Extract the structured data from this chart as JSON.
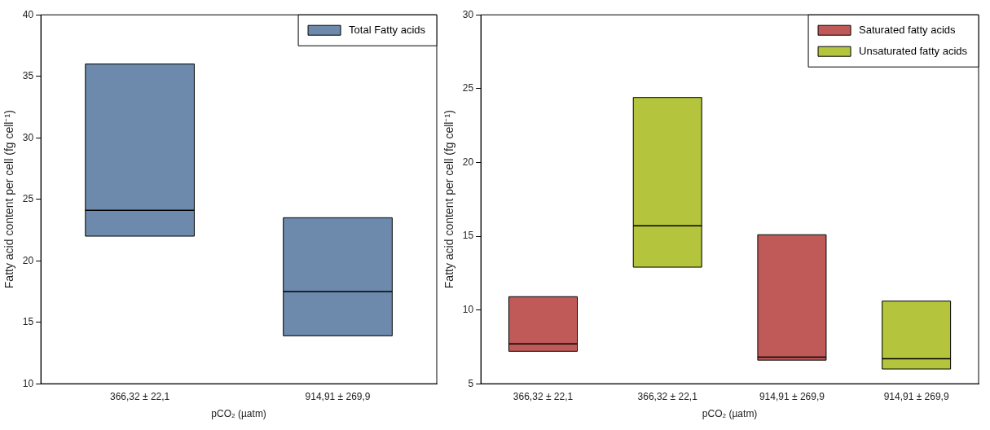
{
  "chart_data": [
    {
      "type": "box",
      "categories": [
        "366,32 ± 22,1",
        "914,91 ± 269,9"
      ],
      "xlabel": "pCO₂ (µatm)",
      "ylabel": "Fatty acid content per cell (fg cell⁻¹)",
      "ylim": [
        10,
        40
      ],
      "yticks": [
        10,
        15,
        20,
        25,
        30,
        35,
        40
      ],
      "grid": false,
      "legend": "top right",
      "series": [
        {
          "name": "Total Fatty acids",
          "color": "#6d8aad",
          "boxes": [
            {
              "low": 22,
              "q1": 22,
              "median": 24.1,
              "q3": 36,
              "high": 36
            },
            {
              "low": 13.9,
              "q1": 13.9,
              "median": 17.5,
              "q3": 23.5,
              "high": 23.5
            }
          ]
        }
      ]
    },
    {
      "type": "box",
      "categories": [
        "366,32 ± 22,1",
        "366,32 ± 22,1",
        "914,91 ± 269,9",
        "914,91 ± 269,9"
      ],
      "xlabel": "pCO₂ (µatm)",
      "ylabel": "Fatty acid content per cell (fg cell⁻¹)",
      "ylim": [
        5,
        30
      ],
      "yticks": [
        5,
        10,
        15,
        20,
        25,
        30
      ],
      "grid": false,
      "legend": "top right",
      "series": [
        {
          "name": "Saturated fatty acids",
          "color": "#c05a58",
          "boxes": [
            {
              "low": 7.2,
              "q1": 7.2,
              "median": 7.7,
              "q3": 10.9,
              "high": 10.9
            },
            null,
            {
              "low": 6.6,
              "q1": 6.6,
              "median": 6.8,
              "q3": 15.1,
              "high": 15.1
            },
            null
          ]
        },
        {
          "name": "Unsaturated fatty acids",
          "color": "#b4c43c",
          "boxes": [
            null,
            {
              "low": 12.9,
              "q1": 12.9,
              "median": 15.7,
              "q3": 24.4,
              "high": 24.4
            },
            null,
            {
              "low": 6.0,
              "q1": 6.0,
              "median": 6.7,
              "q3": 10.6,
              "high": 10.6
            }
          ]
        }
      ]
    }
  ]
}
